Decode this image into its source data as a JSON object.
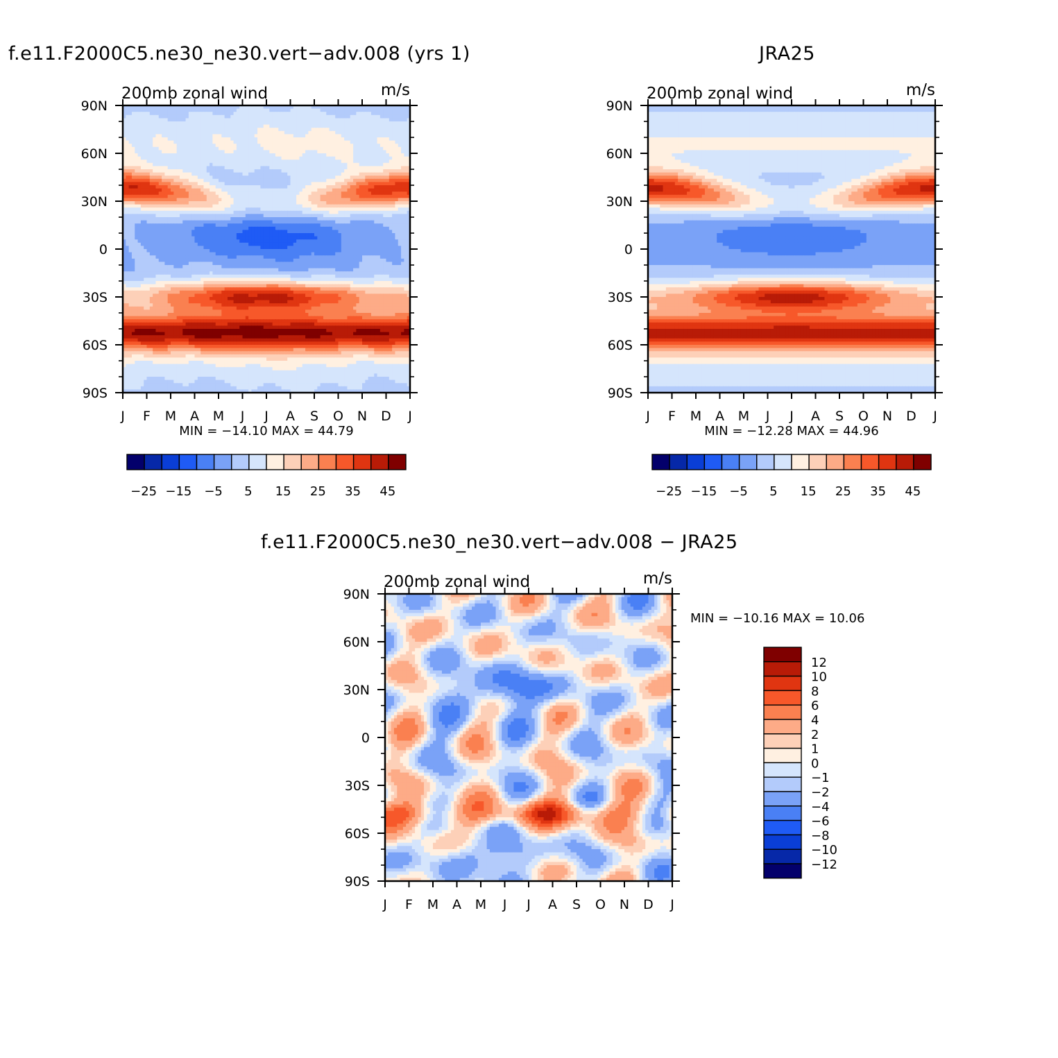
{
  "months": [
    "J",
    "F",
    "M",
    "A",
    "M",
    "J",
    "J",
    "A",
    "S",
    "O",
    "N",
    "D",
    "J"
  ],
  "lat_labels": [
    "90N",
    "60N",
    "30N",
    "0",
    "30S",
    "60S",
    "90S"
  ],
  "full_scale": {
    "colors": [
      "#03006b",
      "#0628a8",
      "#0a3ed6",
      "#1f5bf5",
      "#4a80f5",
      "#7aa2f7",
      "#b3cbfb",
      "#d5e5fc",
      "#fff0e1",
      "#fdd0b8",
      "#fdab87",
      "#fa8050",
      "#f7582a",
      "#e03511",
      "#b81b07",
      "#7f0000"
    ],
    "tick_labels": [
      "−25",
      "−15",
      "−5",
      "5",
      "15",
      "25",
      "35",
      "45"
    ]
  },
  "diff_scale": {
    "colors": [
      "#03006b",
      "#0628a8",
      "#0a3ed6",
      "#1f5bf5",
      "#4a80f5",
      "#7aa2f7",
      "#b3cbfb",
      "#d5e5fc",
      "#fff0e1",
      "#fdd0b8",
      "#fdab87",
      "#fa8050",
      "#f7582a",
      "#e03511",
      "#b81b07",
      "#7f0000"
    ],
    "labels": [
      "12",
      "10",
      "8",
      "6",
      "4",
      "2",
      "1",
      "0",
      "−1",
      "−2",
      "−4",
      "−6",
      "−8",
      "−10",
      "−12"
    ]
  },
  "chart_data": [
    {
      "type": "heatmap",
      "id": "model",
      "title": "f.e11.F2000C5.ne30_ne30.vert−adv.008 (yrs 1)",
      "subtitle_left": "200mb zonal wind",
      "subtitle_right": "m/s",
      "min_max_text": "MIN = −14.10 MAX =   44.79",
      "x": [
        "J",
        "F",
        "M",
        "A",
        "M",
        "J",
        "J",
        "A",
        "S",
        "O",
        "N",
        "D",
        "J"
      ],
      "y": [
        "90S",
        "60S",
        "30S",
        "0",
        "30N",
        "60N",
        "90N"
      ],
      "xlim": [
        0,
        12
      ],
      "ylim": [
        -90,
        90
      ],
      "levels": [
        -30,
        -25,
        -20,
        -15,
        -10,
        -5,
        0,
        5,
        10,
        15,
        20,
        25,
        30,
        35,
        40,
        45,
        50
      ],
      "jet_amplitudes": {
        "nh": 38,
        "sh": 40,
        "polar": 42,
        "trop": -12
      }
    },
    {
      "type": "heatmap",
      "id": "obs",
      "title": "JRA25",
      "subtitle_left": "200mb zonal wind",
      "subtitle_right": "m/s",
      "min_max_text": "MIN = −12.28 MAX =   44.96",
      "x": [
        "J",
        "F",
        "M",
        "A",
        "M",
        "J",
        "J",
        "A",
        "S",
        "O",
        "N",
        "D",
        "J"
      ],
      "y": [
        "90S",
        "60S",
        "30S",
        "0",
        "30N",
        "60N",
        "90N"
      ],
      "xlim": [
        0,
        12
      ],
      "ylim": [
        -90,
        90
      ],
      "levels": [
        -30,
        -25,
        -20,
        -15,
        -10,
        -5,
        0,
        5,
        10,
        15,
        20,
        25,
        30,
        35,
        40,
        45,
        50
      ],
      "jet_amplitudes": {
        "nh": 40,
        "sh": 41,
        "polar": 38,
        "trop": -10
      }
    },
    {
      "type": "heatmap",
      "id": "diff",
      "title": "f.e11.F2000C5.ne30_ne30.vert−adv.008 − JRA25",
      "subtitle_left": "200mb zonal wind",
      "subtitle_right": "m/s",
      "min_max_text": "MIN = −10.16 MAX =   10.06",
      "x": [
        "J",
        "F",
        "M",
        "A",
        "M",
        "J",
        "J",
        "A",
        "S",
        "O",
        "N",
        "D",
        "J"
      ],
      "y": [
        "90S",
        "60S",
        "30S",
        "0",
        "30N",
        "60N",
        "90N"
      ],
      "xlim": [
        0,
        12
      ],
      "ylim": [
        -90,
        90
      ],
      "levels": [
        -14,
        -12,
        -10,
        -8,
        -6,
        -4,
        -2,
        -1,
        0,
        1,
        2,
        4,
        6,
        8,
        10,
        12,
        14
      ]
    }
  ]
}
